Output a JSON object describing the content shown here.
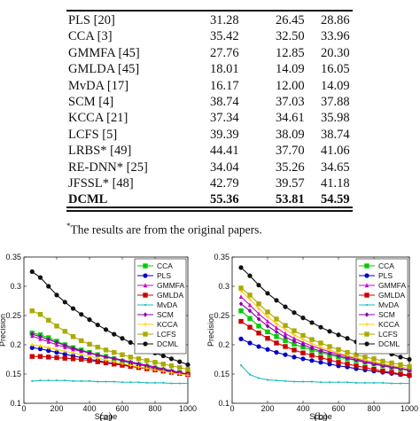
{
  "table": {
    "rows": [
      {
        "method": "PLS [20]",
        "v1": "31.28",
        "v2": "26.45",
        "v3": "28.86",
        "bold": false
      },
      {
        "method": "CCA [3]",
        "v1": "35.42",
        "v2": "32.50",
        "v3": "33.96",
        "bold": false
      },
      {
        "method": "GMMFA [45]",
        "v1": "27.76",
        "v2": "12.85",
        "v3": "20.30",
        "bold": false
      },
      {
        "method": "GMLDA [45]",
        "v1": "18.01",
        "v2": "14.09",
        "v3": "16.05",
        "bold": false
      },
      {
        "method": "MvDA [17]",
        "v1": "16.17",
        "v2": "12.00",
        "v3": "14.09",
        "bold": false
      },
      {
        "method": "SCM [4]",
        "v1": "38.74",
        "v2": "37.03",
        "v3": "37.88",
        "bold": false
      },
      {
        "method": "KCCA [21]",
        "v1": "37.34",
        "v2": "34.61",
        "v3": "35.98",
        "bold": false
      },
      {
        "method": "LCFS [5]",
        "v1": "39.39",
        "v2": "38.09",
        "v3": "38.74",
        "bold": false
      },
      {
        "method": "LRBS* [49]",
        "v1": "44.41",
        "v2": "37.70",
        "v3": "41.06",
        "bold": false
      },
      {
        "method": "RE-DNN* [25]",
        "v1": "34.04",
        "v2": "35.26",
        "v3": "34.65",
        "bold": false
      },
      {
        "method": "JFSSL* [48]",
        "v1": "42.79",
        "v2": "39.57",
        "v3": "41.18",
        "bold": false
      },
      {
        "method": "DCML",
        "v1": "55.36",
        "v2": "53.81",
        "v3": "54.59",
        "bold": true
      }
    ]
  },
  "footnote": {
    "mark": "*",
    "text": "The results are from the original papers."
  },
  "chart_data": [
    {
      "type": "line",
      "panel_label": "(a)",
      "xlabel": "Scope",
      "ylabel": "Precision",
      "xlim": [
        0,
        1000
      ],
      "ylim": [
        0.1,
        0.35
      ],
      "xticks": [
        0,
        200,
        400,
        600,
        800,
        1000
      ],
      "yticks": [
        0.1,
        0.15,
        0.2,
        0.25,
        0.3,
        0.35
      ],
      "grid": false,
      "legend": "top-right",
      "x": [
        50,
        100,
        150,
        200,
        250,
        300,
        350,
        400,
        450,
        500,
        550,
        600,
        650,
        700,
        750,
        800,
        850,
        900,
        950,
        1000
      ],
      "series": [
        {
          "name": "CCA",
          "color": "#00cc00",
          "marker": "square",
          "values": [
            0.22,
            0.217,
            0.212,
            0.206,
            0.2,
            0.195,
            0.191,
            0.187,
            0.183,
            0.18,
            0.176,
            0.172,
            0.169,
            0.166,
            0.163,
            0.16,
            0.157,
            0.154,
            0.152,
            0.15
          ]
        },
        {
          "name": "PLS",
          "color": "#0000cc",
          "marker": "circle",
          "values": [
            0.195,
            0.193,
            0.19,
            0.187,
            0.184,
            0.181,
            0.178,
            0.175,
            0.173,
            0.17,
            0.168,
            0.166,
            0.164,
            0.162,
            0.16,
            0.158,
            0.156,
            0.154,
            0.152,
            0.15
          ]
        },
        {
          "name": "GMMFA",
          "color": "#cc00cc",
          "marker": "triangle",
          "values": [
            0.215,
            0.21,
            0.205,
            0.2,
            0.196,
            0.192,
            0.189,
            0.186,
            0.183,
            0.18,
            0.177,
            0.174,
            0.171,
            0.168,
            0.165,
            0.162,
            0.159,
            0.156,
            0.153,
            0.15
          ]
        },
        {
          "name": "GMLDA",
          "color": "#cc0000",
          "marker": "square",
          "values": [
            0.18,
            0.18,
            0.179,
            0.178,
            0.177,
            0.176,
            0.175,
            0.173,
            0.171,
            0.169,
            0.167,
            0.165,
            0.163,
            0.161,
            0.159,
            0.157,
            0.155,
            0.153,
            0.151,
            0.149
          ]
        },
        {
          "name": "MvDA",
          "color": "#22bbbb",
          "marker": "dot",
          "values": [
            0.138,
            0.139,
            0.139,
            0.139,
            0.139,
            0.138,
            0.138,
            0.138,
            0.137,
            0.137,
            0.137,
            0.136,
            0.136,
            0.136,
            0.135,
            0.135,
            0.135,
            0.134,
            0.134,
            0.134
          ]
        },
        {
          "name": "SCM",
          "color": "#8800aa",
          "marker": "diamond",
          "values": [
            0.218,
            0.214,
            0.209,
            0.204,
            0.199,
            0.194,
            0.19,
            0.186,
            0.182,
            0.179,
            0.176,
            0.173,
            0.17,
            0.167,
            0.164,
            0.161,
            0.158,
            0.155,
            0.152,
            0.149
          ]
        },
        {
          "name": "KCCA",
          "color": "#ffcc00",
          "marker": "plus",
          "values": [
            0.2,
            0.198,
            0.195,
            0.192,
            0.189,
            0.186,
            0.183,
            0.18,
            0.177,
            0.174,
            0.171,
            0.168,
            0.165,
            0.162,
            0.16,
            0.157,
            0.155,
            0.152,
            0.15,
            0.148
          ]
        },
        {
          "name": "LCFS",
          "color": "#aaaa00",
          "marker": "square",
          "values": [
            0.258,
            0.252,
            0.242,
            0.232,
            0.223,
            0.214,
            0.207,
            0.201,
            0.196,
            0.191,
            0.187,
            0.183,
            0.179,
            0.176,
            0.173,
            0.17,
            0.167,
            0.164,
            0.161,
            0.158
          ]
        },
        {
          "name": "DCML",
          "color": "#111111",
          "marker": "circle",
          "values": [
            0.325,
            0.315,
            0.3,
            0.285,
            0.273,
            0.262,
            0.252,
            0.243,
            0.234,
            0.226,
            0.218,
            0.211,
            0.204,
            0.198,
            0.192,
            0.186,
            0.181,
            0.176,
            0.171,
            0.166
          ]
        }
      ]
    },
    {
      "type": "line",
      "panel_label": "(b)",
      "xlabel": "Scope",
      "ylabel": "Precision",
      "xlim": [
        0,
        1000
      ],
      "ylim": [
        0.1,
        0.35
      ],
      "xticks": [
        0,
        200,
        400,
        600,
        800,
        1000
      ],
      "yticks": [
        0.1,
        0.15,
        0.2,
        0.25,
        0.3,
        0.35
      ],
      "grid": false,
      "legend": "top-right",
      "x": [
        50,
        100,
        150,
        200,
        250,
        300,
        350,
        400,
        450,
        500,
        550,
        600,
        650,
        700,
        750,
        800,
        850,
        900,
        950,
        1000
      ],
      "series": [
        {
          "name": "CCA",
          "color": "#00cc00",
          "marker": "square",
          "values": [
            0.258,
            0.245,
            0.232,
            0.222,
            0.214,
            0.207,
            0.201,
            0.196,
            0.191,
            0.187,
            0.183,
            0.179,
            0.176,
            0.173,
            0.17,
            0.167,
            0.164,
            0.162,
            0.159,
            0.157
          ]
        },
        {
          "name": "PLS",
          "color": "#0000cc",
          "marker": "circle",
          "values": [
            0.21,
            0.203,
            0.197,
            0.192,
            0.187,
            0.183,
            0.179,
            0.176,
            0.173,
            0.17,
            0.167,
            0.164,
            0.162,
            0.159,
            0.157,
            0.155,
            0.153,
            0.151,
            0.149,
            0.147
          ]
        },
        {
          "name": "GMMFA",
          "color": "#cc00cc",
          "marker": "triangle",
          "values": [
            0.282,
            0.268,
            0.253,
            0.24,
            0.229,
            0.219,
            0.211,
            0.204,
            0.198,
            0.193,
            0.188,
            0.184,
            0.18,
            0.176,
            0.172,
            0.169,
            0.166,
            0.163,
            0.16,
            0.157
          ]
        },
        {
          "name": "GMLDA",
          "color": "#cc0000",
          "marker": "square",
          "values": [
            0.24,
            0.23,
            0.22,
            0.211,
            0.203,
            0.197,
            0.191,
            0.186,
            0.182,
            0.178,
            0.174,
            0.17,
            0.167,
            0.164,
            0.161,
            0.158,
            0.155,
            0.153,
            0.15,
            0.148
          ]
        },
        {
          "name": "MvDA",
          "color": "#22bbbb",
          "marker": "dot",
          "values": [
            0.165,
            0.149,
            0.143,
            0.14,
            0.139,
            0.138,
            0.137,
            0.137,
            0.137,
            0.136,
            0.136,
            0.136,
            0.136,
            0.135,
            0.135,
            0.135,
            0.135,
            0.134,
            0.134,
            0.134
          ]
        },
        {
          "name": "SCM",
          "color": "#8800aa",
          "marker": "diamond",
          "values": [
            0.27,
            0.258,
            0.244,
            0.232,
            0.222,
            0.213,
            0.206,
            0.2,
            0.194,
            0.189,
            0.185,
            0.181,
            0.177,
            0.174,
            0.17,
            0.167,
            0.164,
            0.161,
            0.159,
            0.156
          ]
        },
        {
          "name": "KCCA",
          "color": "#ffcc00",
          "marker": "plus",
          "values": [
            0.292,
            0.278,
            0.262,
            0.248,
            0.236,
            0.226,
            0.217,
            0.209,
            0.202,
            0.196,
            0.191,
            0.186,
            0.182,
            0.178,
            0.174,
            0.171,
            0.168,
            0.165,
            0.162,
            0.16
          ]
        },
        {
          "name": "LCFS",
          "color": "#aaaa00",
          "marker": "square",
          "values": [
            0.297,
            0.285,
            0.27,
            0.256,
            0.244,
            0.233,
            0.224,
            0.216,
            0.209,
            0.203,
            0.197,
            0.192,
            0.187,
            0.183,
            0.179,
            0.176,
            0.172,
            0.169,
            0.166,
            0.163
          ]
        },
        {
          "name": "DCML",
          "color": "#111111",
          "marker": "circle",
          "values": [
            0.332,
            0.318,
            0.302,
            0.288,
            0.276,
            0.265,
            0.255,
            0.246,
            0.238,
            0.23,
            0.223,
            0.217,
            0.211,
            0.205,
            0.199,
            0.194,
            0.189,
            0.184,
            0.179,
            0.175
          ]
        }
      ]
    }
  ]
}
